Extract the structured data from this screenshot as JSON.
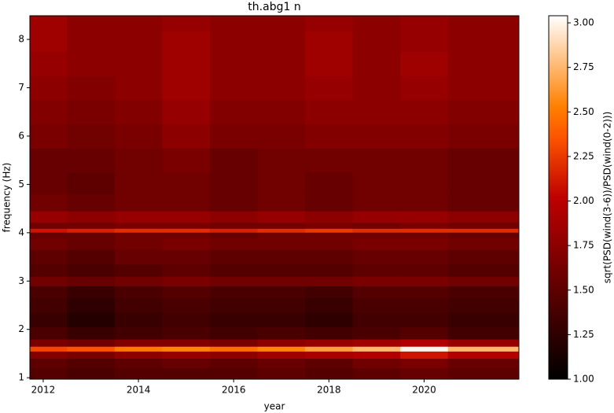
{
  "chart_data": {
    "type": "heatmap",
    "title": "th.abg1 n",
    "x_label": "year",
    "y_label": "frequency (Hz)",
    "colorbar_label": "sqrt(PSD(wind(3-6))/PSD(wind(0-2)))",
    "colormap": "gist_heat",
    "x": [
      2012,
      2013,
      2014,
      2015,
      2016,
      2017,
      2018,
      2019,
      2020,
      2021
    ],
    "y": [
      1.1,
      1.3,
      1.5,
      1.6,
      1.7,
      1.9,
      2.2,
      2.5,
      2.8,
      3.0,
      3.2,
      3.5,
      3.8,
      3.97,
      4.05,
      4.13,
      4.3,
      4.6,
      5.0,
      5.5,
      6.0,
      6.5,
      7.0,
      7.5,
      8.0,
      8.35
    ],
    "z": [
      [
        1.45,
        1.4,
        1.45,
        1.45,
        1.45,
        1.5,
        1.45,
        1.5,
        1.55,
        1.5
      ],
      [
        1.5,
        1.45,
        1.5,
        1.55,
        1.5,
        1.55,
        1.5,
        1.6,
        1.65,
        1.55
      ],
      [
        1.7,
        1.65,
        1.75,
        1.8,
        1.75,
        1.85,
        1.9,
        1.95,
        2.1,
        1.95
      ],
      [
        2.3,
        2.35,
        2.5,
        2.55,
        2.45,
        2.55,
        2.65,
        2.75,
        3.0,
        2.75
      ],
      [
        1.65,
        1.6,
        1.7,
        1.7,
        1.65,
        1.75,
        1.8,
        1.85,
        1.95,
        1.8
      ],
      [
        1.4,
        1.3,
        1.35,
        1.4,
        1.35,
        1.4,
        1.35,
        1.4,
        1.45,
        1.35
      ],
      [
        1.3,
        1.2,
        1.3,
        1.35,
        1.3,
        1.3,
        1.25,
        1.35,
        1.35,
        1.3
      ],
      [
        1.35,
        1.25,
        1.35,
        1.4,
        1.35,
        1.35,
        1.3,
        1.4,
        1.4,
        1.35
      ],
      [
        1.4,
        1.3,
        1.4,
        1.45,
        1.4,
        1.4,
        1.35,
        1.45,
        1.45,
        1.4
      ],
      [
        1.6,
        1.55,
        1.6,
        1.65,
        1.6,
        1.6,
        1.6,
        1.65,
        1.65,
        1.6
      ],
      [
        1.45,
        1.4,
        1.45,
        1.5,
        1.45,
        1.45,
        1.45,
        1.5,
        1.5,
        1.45
      ],
      [
        1.5,
        1.45,
        1.55,
        1.55,
        1.5,
        1.5,
        1.5,
        1.55,
        1.55,
        1.5
      ],
      [
        1.6,
        1.55,
        1.6,
        1.65,
        1.6,
        1.6,
        1.6,
        1.65,
        1.65,
        1.6
      ],
      [
        1.55,
        1.55,
        1.6,
        1.6,
        1.55,
        1.6,
        1.6,
        1.6,
        1.6,
        1.55
      ],
      [
        2.1,
        2.15,
        2.2,
        2.2,
        2.15,
        2.2,
        2.25,
        2.2,
        2.2,
        2.2
      ],
      [
        1.6,
        1.6,
        1.65,
        1.65,
        1.6,
        1.6,
        1.65,
        1.6,
        1.65,
        1.6
      ],
      [
        1.8,
        1.75,
        1.8,
        1.8,
        1.75,
        1.8,
        1.75,
        1.8,
        1.8,
        1.75
      ],
      [
        1.6,
        1.55,
        1.6,
        1.6,
        1.55,
        1.6,
        1.55,
        1.6,
        1.6,
        1.55
      ],
      [
        1.55,
        1.5,
        1.6,
        1.6,
        1.55,
        1.6,
        1.55,
        1.6,
        1.6,
        1.55
      ],
      [
        1.55,
        1.55,
        1.6,
        1.65,
        1.55,
        1.6,
        1.6,
        1.6,
        1.6,
        1.55
      ],
      [
        1.65,
        1.6,
        1.65,
        1.75,
        1.65,
        1.65,
        1.7,
        1.7,
        1.7,
        1.65
      ],
      [
        1.7,
        1.65,
        1.7,
        1.8,
        1.7,
        1.7,
        1.75,
        1.75,
        1.75,
        1.7
      ],
      [
        1.75,
        1.7,
        1.75,
        1.85,
        1.75,
        1.75,
        1.8,
        1.75,
        1.8,
        1.75
      ],
      [
        1.8,
        1.75,
        1.75,
        1.85,
        1.75,
        1.75,
        1.85,
        1.75,
        1.85,
        1.75
      ],
      [
        1.85,
        1.75,
        1.75,
        1.85,
        1.75,
        1.75,
        1.85,
        1.75,
        1.8,
        1.75
      ],
      [
        1.85,
        1.75,
        1.75,
        1.8,
        1.75,
        1.75,
        1.8,
        1.75,
        1.8,
        1.75
      ]
    ],
    "xlim": [
      2011.72,
      2021.99
    ],
    "xticks": [
      2012,
      2014,
      2016,
      2018,
      2020
    ],
    "ylim": [
      0.97,
      8.49
    ],
    "yticks": [
      1,
      2,
      3,
      4,
      5,
      6,
      7,
      8
    ],
    "zlim": [
      1.0,
      3.04
    ],
    "zticks": [
      {
        "value": 1.0,
        "label": "1.00"
      },
      {
        "value": 1.25,
        "label": "1.25"
      },
      {
        "value": 1.5,
        "label": "1.50"
      },
      {
        "value": 1.75,
        "label": "1.75"
      },
      {
        "value": 2.0,
        "label": "2.00"
      },
      {
        "value": 2.25,
        "label": "2.25"
      },
      {
        "value": 2.5,
        "label": "2.50"
      },
      {
        "value": 2.75,
        "label": "2.75"
      },
      {
        "value": 3.0,
        "label": "3.00"
      }
    ]
  }
}
